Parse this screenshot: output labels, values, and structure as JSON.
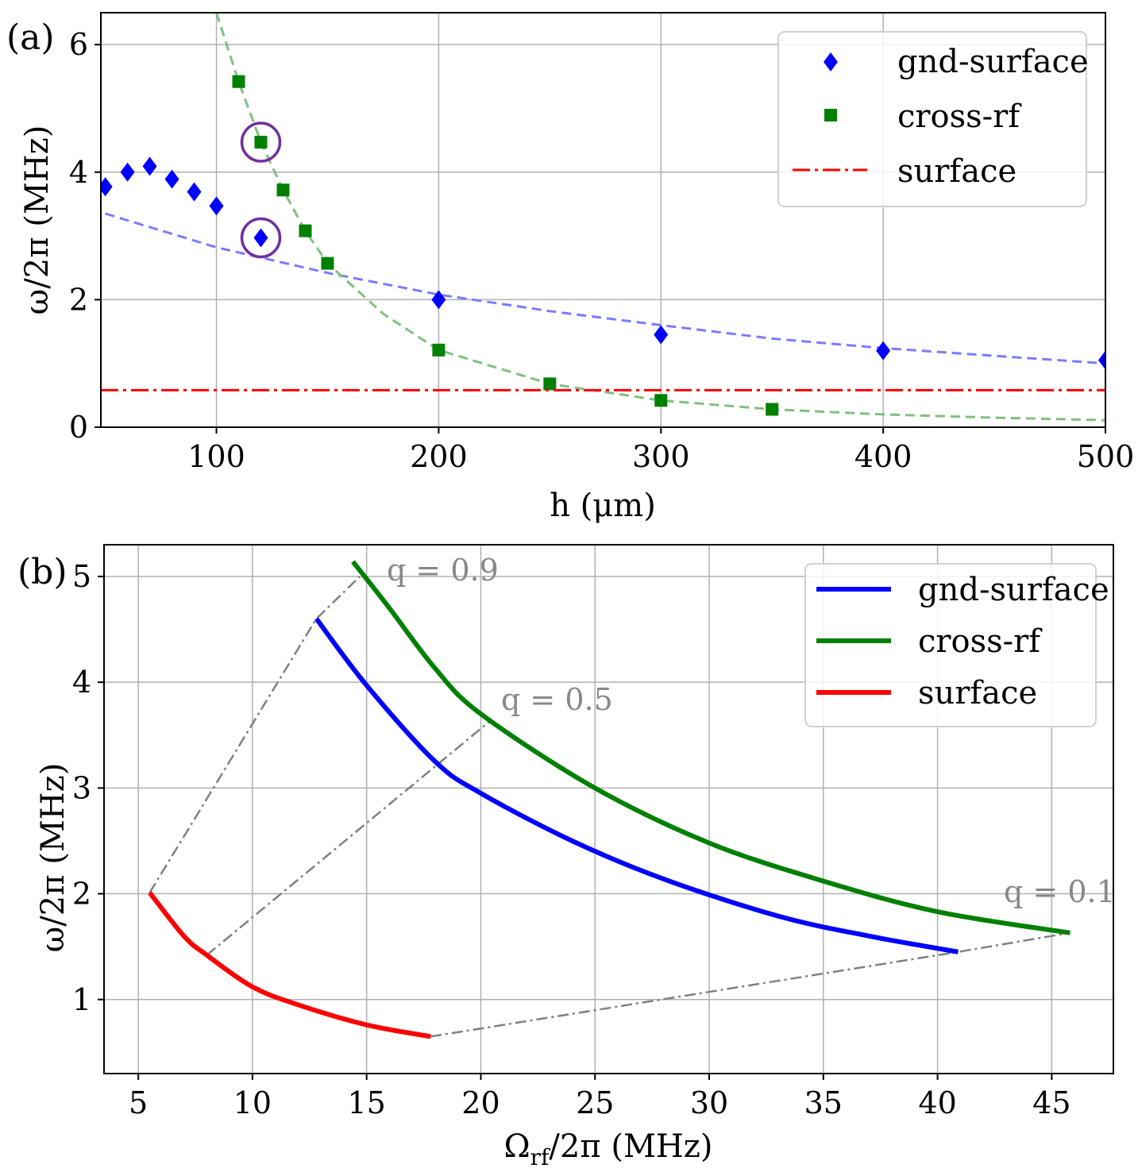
{
  "chart_data": [
    {
      "type": "scatter",
      "panel_label": "(a)",
      "xlabel": "h (μm)",
      "ylabel": "ω/2π (MHz)",
      "xlim": [
        48,
        500
      ],
      "ylim": [
        0,
        6.5
      ],
      "xticks": [
        100,
        200,
        300,
        400,
        500
      ],
      "yticks": [
        0,
        2,
        4,
        6
      ],
      "grid": true,
      "legend_position": "top-right",
      "series": [
        {
          "name": "gnd-surface",
          "marker": "diamond",
          "color": "#0000ff",
          "x": [
            50,
            60,
            70,
            80,
            90,
            100,
            120,
            200,
            300,
            400,
            500
          ],
          "y": [
            3.77,
            4.0,
            4.09,
            3.89,
            3.69,
            3.47,
            2.97,
            2.0,
            1.45,
            1.2,
            1.05
          ]
        },
        {
          "name": "cross-rf",
          "marker": "square",
          "color": "#008000",
          "x": [
            110,
            120,
            130,
            140,
            150,
            200,
            250,
            300,
            350
          ],
          "y": [
            5.42,
            4.47,
            3.72,
            3.08,
            2.57,
            1.21,
            0.68,
            0.42,
            0.28
          ]
        },
        {
          "name": "surface",
          "style": "dash-dot",
          "color": "#ff0000",
          "x": [
            48,
            500
          ],
          "y": [
            0.58,
            0.58
          ]
        }
      ],
      "fits": [
        {
          "name": "gnd-surface fit",
          "color": "#7b7bff",
          "x": [
            50,
            100,
            150,
            200,
            250,
            300,
            350,
            400,
            450,
            500
          ],
          "y": [
            3.35,
            2.82,
            2.42,
            2.08,
            1.82,
            1.6,
            1.39,
            1.24,
            1.12,
            1.0
          ]
        },
        {
          "name": "cross-rf fit",
          "color": "#80c080",
          "x": [
            100,
            110,
            120,
            130,
            140,
            150,
            175,
            200,
            250,
            300,
            350,
            400,
            450,
            500
          ],
          "y": [
            6.5,
            5.42,
            4.47,
            3.72,
            3.08,
            2.57,
            1.78,
            1.21,
            0.68,
            0.42,
            0.28,
            0.2,
            0.15,
            0.11
          ]
        }
      ],
      "highlighted_points": [
        {
          "series": "cross-rf",
          "x": 120,
          "y": 4.47
        },
        {
          "series": "gnd-surface",
          "x": 120,
          "y": 2.97
        }
      ]
    },
    {
      "type": "line",
      "panel_label": "(b)",
      "xlabel": "Ω_rf/2π (MHz)",
      "ylabel": "ω/2π (MHz)",
      "xlim": [
        3.5,
        47.7
      ],
      "ylim": [
        0.3,
        5.3
      ],
      "xticks": [
        5,
        10,
        15,
        20,
        25,
        30,
        35,
        40,
        45
      ],
      "yticks": [
        1,
        2,
        3,
        4,
        5
      ],
      "grid": true,
      "legend_position": "top-right",
      "series": [
        {
          "name": "gnd-surface",
          "color": "#0000ff",
          "x": [
            12.8,
            15,
            18,
            20,
            24,
            28,
            33,
            37,
            40.9
          ],
          "y": [
            4.6,
            3.97,
            3.25,
            2.95,
            2.5,
            2.14,
            1.79,
            1.6,
            1.45
          ]
        },
        {
          "name": "cross-rf",
          "color": "#008000",
          "x": [
            14.4,
            16,
            18,
            20,
            25,
            30,
            35,
            40,
            45.8
          ],
          "y": [
            5.14,
            4.7,
            4.13,
            3.7,
            3.0,
            2.48,
            2.12,
            1.83,
            1.63
          ]
        },
        {
          "name": "surface",
          "color": "#ff0000",
          "x": [
            5.5,
            7,
            8,
            10,
            12,
            15,
            17.8
          ],
          "y": [
            2.01,
            1.6,
            1.42,
            1.12,
            0.95,
            0.76,
            0.65
          ]
        }
      ],
      "q_lines": [
        {
          "label": "q = 0.9",
          "x": [
            5.5,
            12.8,
            14.7
          ],
          "y": [
            2.01,
            4.6,
            5.0
          ]
        },
        {
          "label": "q = 0.5",
          "x": [
            8,
            20.5
          ],
          "y": [
            1.42,
            3.65
          ]
        },
        {
          "label": "q = 0.1",
          "x": [
            17.8,
            40.9,
            45.8
          ],
          "y": [
            0.65,
            1.45,
            1.63
          ]
        }
      ],
      "annotations": [
        "q = 0.9",
        "q = 0.5",
        "q = 0.1"
      ]
    }
  ]
}
